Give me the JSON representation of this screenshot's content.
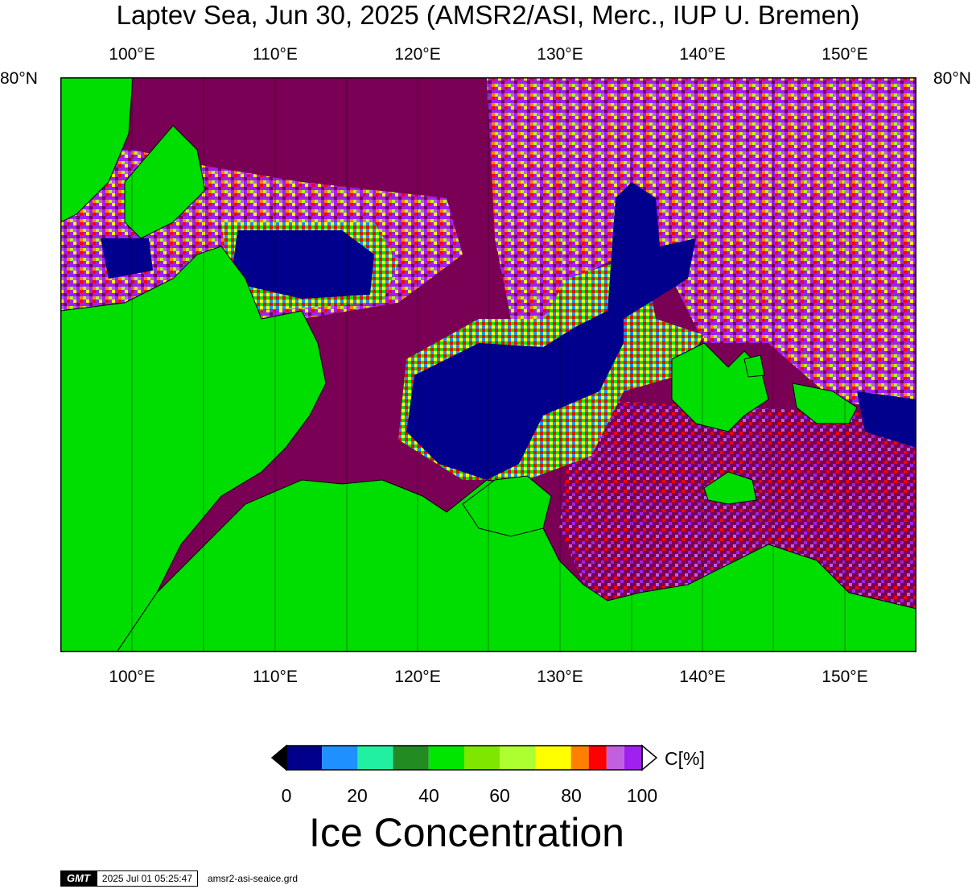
{
  "title": "Laptev Sea, Jun 30, 2025 (AMSR2/ASI, Merc., IUP U. Bremen)",
  "axes": {
    "lon_ticks": [
      "100°E",
      "110°E",
      "120°E",
      "130°E",
      "140°E",
      "150°E"
    ],
    "lon_values": [
      100,
      110,
      120,
      130,
      140,
      150
    ],
    "lon_range": [
      95,
      155
    ],
    "lat_label": "80°N"
  },
  "colorbar": {
    "unit": "C[%]",
    "title": "Ice Concentration",
    "tick_labels": [
      "0",
      "20",
      "40",
      "60",
      "80",
      "100"
    ],
    "tick_values": [
      0,
      20,
      40,
      60,
      80,
      100
    ],
    "bins": [
      0,
      10,
      20,
      30,
      40,
      50,
      60,
      70,
      80,
      85,
      90,
      95,
      100
    ],
    "colors": [
      "#00008c",
      "#1e90ff",
      "#20f0a0",
      "#228b22",
      "#00e600",
      "#7fe600",
      "#adff2f",
      "#ffff00",
      "#ff7f00",
      "#ff0000",
      "#c060e0",
      "#a020f0"
    ]
  },
  "colors": {
    "land": "#00dd00",
    "open_water": "#00008c",
    "full_ice": "#7a0055",
    "ice_mix": [
      "#7a0055",
      "#a020f0",
      "#c060e0",
      "#ff0000",
      "#ff7f00",
      "#ffff00",
      "#adff2f",
      "#7fe600",
      "#00e600",
      "#1e90ff"
    ]
  },
  "footer": {
    "logo": "GMT",
    "timestamp": "2025 Jul 01 05:25:47",
    "grid_file": "amsr2-asi-seaice.grd"
  }
}
